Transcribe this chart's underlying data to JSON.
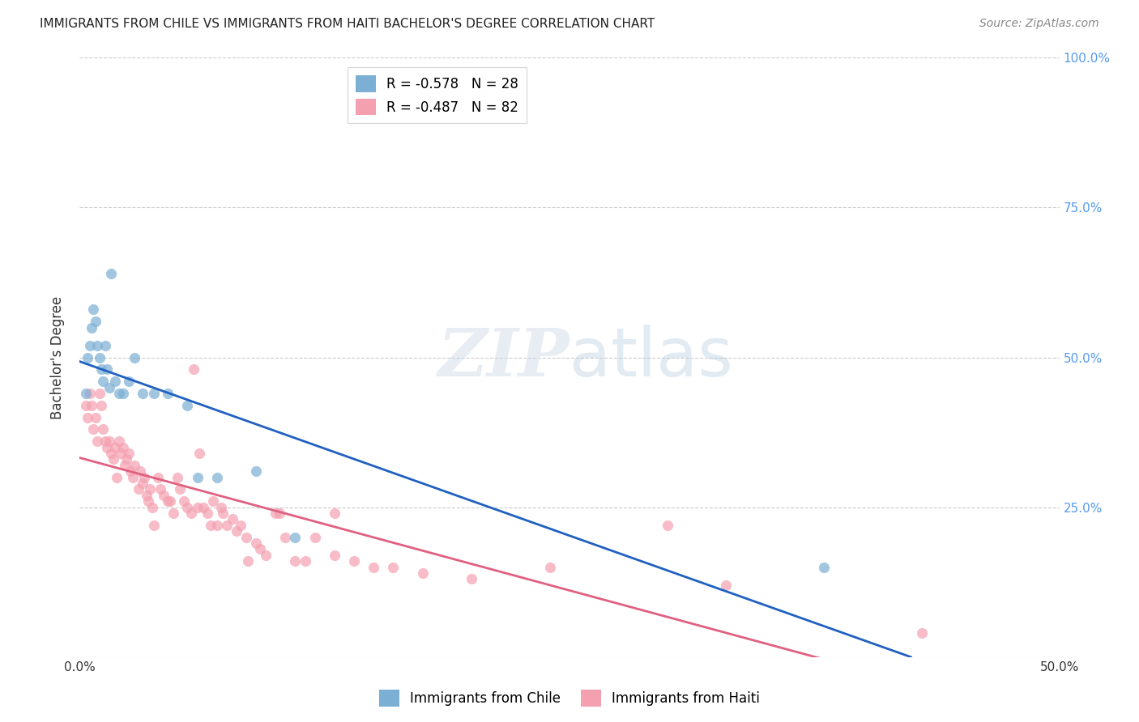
{
  "title": "IMMIGRANTS FROM CHILE VS IMMIGRANTS FROM HAITI BACHELOR'S DEGREE CORRELATION CHART",
  "source": "Source: ZipAtlas.com",
  "ylabel": "Bachelor's Degree",
  "xlim": [
    0.0,
    0.5
  ],
  "ylim": [
    0.0,
    1.0
  ],
  "yticks": [
    0.0,
    0.25,
    0.5,
    0.75,
    1.0
  ],
  "ytick_labels": [
    "",
    "25.0%",
    "50.0%",
    "75.0%",
    "100.0%"
  ],
  "xticks": [
    0.0,
    0.1,
    0.2,
    0.3,
    0.4,
    0.5
  ],
  "xtick_labels": [
    "0.0%",
    "",
    "",
    "",
    "",
    "50.0%"
  ],
  "legend_chile_r": "R = -0.578",
  "legend_chile_n": "N = 28",
  "legend_haiti_r": "R = -0.487",
  "legend_haiti_n": "N = 82",
  "chile_color": "#7bafd4",
  "haiti_color": "#f4a0b0",
  "chile_line_color": "#2060c0",
  "haiti_line_color": "#e06080",
  "background_color": "#ffffff",
  "chile_x": [
    0.003,
    0.004,
    0.005,
    0.006,
    0.007,
    0.008,
    0.009,
    0.01,
    0.011,
    0.012,
    0.013,
    0.014,
    0.015,
    0.016,
    0.018,
    0.02,
    0.022,
    0.025,
    0.028,
    0.032,
    0.038,
    0.045,
    0.055,
    0.06,
    0.07,
    0.09,
    0.11,
    0.38
  ],
  "chile_y": [
    0.44,
    0.5,
    0.52,
    0.55,
    0.58,
    0.56,
    0.52,
    0.5,
    0.48,
    0.46,
    0.52,
    0.48,
    0.45,
    0.64,
    0.46,
    0.44,
    0.44,
    0.46,
    0.5,
    0.44,
    0.44,
    0.44,
    0.42,
    0.3,
    0.3,
    0.31,
    0.2,
    0.15
  ],
  "haiti_x": [
    0.003,
    0.004,
    0.005,
    0.006,
    0.007,
    0.008,
    0.009,
    0.01,
    0.011,
    0.012,
    0.013,
    0.014,
    0.015,
    0.016,
    0.017,
    0.018,
    0.019,
    0.02,
    0.021,
    0.022,
    0.023,
    0.024,
    0.025,
    0.026,
    0.027,
    0.028,
    0.03,
    0.031,
    0.032,
    0.033,
    0.034,
    0.035,
    0.036,
    0.037,
    0.038,
    0.04,
    0.041,
    0.043,
    0.045,
    0.046,
    0.048,
    0.05,
    0.051,
    0.053,
    0.055,
    0.057,
    0.058,
    0.06,
    0.061,
    0.063,
    0.065,
    0.067,
    0.068,
    0.07,
    0.072,
    0.073,
    0.075,
    0.078,
    0.08,
    0.082,
    0.085,
    0.086,
    0.09,
    0.092,
    0.095,
    0.1,
    0.102,
    0.105,
    0.11,
    0.115,
    0.12,
    0.13,
    0.14,
    0.15,
    0.16,
    0.175,
    0.2,
    0.24,
    0.33,
    0.43,
    0.3,
    0.13
  ],
  "haiti_y": [
    0.42,
    0.4,
    0.44,
    0.42,
    0.38,
    0.4,
    0.36,
    0.44,
    0.42,
    0.38,
    0.36,
    0.35,
    0.36,
    0.34,
    0.33,
    0.35,
    0.3,
    0.36,
    0.34,
    0.35,
    0.32,
    0.33,
    0.34,
    0.31,
    0.3,
    0.32,
    0.28,
    0.31,
    0.29,
    0.3,
    0.27,
    0.26,
    0.28,
    0.25,
    0.22,
    0.3,
    0.28,
    0.27,
    0.26,
    0.26,
    0.24,
    0.3,
    0.28,
    0.26,
    0.25,
    0.24,
    0.48,
    0.25,
    0.34,
    0.25,
    0.24,
    0.22,
    0.26,
    0.22,
    0.25,
    0.24,
    0.22,
    0.23,
    0.21,
    0.22,
    0.2,
    0.16,
    0.19,
    0.18,
    0.17,
    0.24,
    0.24,
    0.2,
    0.16,
    0.16,
    0.2,
    0.17,
    0.16,
    0.15,
    0.15,
    0.14,
    0.13,
    0.15,
    0.12,
    0.04,
    0.22,
    0.24
  ]
}
